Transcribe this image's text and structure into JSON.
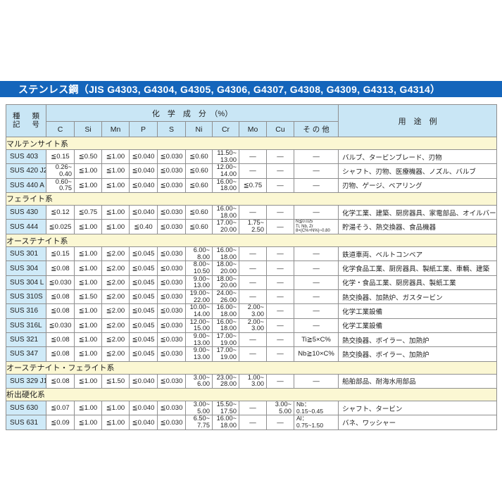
{
  "page_title": "ステンレス鋼（JIS G4303, G4304, G4305, G4306, G4307, G4308, G4309, G4313, G4314）",
  "colors": {
    "title_bar_bg": "#1465bb",
    "title_text": "#ffffff",
    "header_cell_bg": "#c9e6f5",
    "code_cell_bg": "#cfeaf8",
    "section_row_bg": "#fbf7d3",
    "grid_border": "#8f8f8f"
  },
  "table": {
    "header": {
      "col1_line1": "種類",
      "col1_line2": "記号",
      "group": "化　学　成　分　（%）",
      "elements": [
        "C",
        "Si",
        "Mn",
        "P",
        "S",
        "Ni",
        "Cr",
        "Mo",
        "Cu",
        "そ の 他"
      ],
      "usage": "用　途　例"
    },
    "sections": [
      {
        "name": "マルテンサイト系",
        "rows": [
          {
            "code": "SUS 403",
            "c": "≦0.15",
            "si": "≦0.50",
            "mn": "≦1.00",
            "p": "≦0.040",
            "s": "≦0.030",
            "ni": "≦0.60",
            "cr": "11.50~\n13.00",
            "mo": "—",
            "cu": "—",
            "other": "—",
            "use": "バルブ、タービンブレード、刃物"
          },
          {
            "code": "SUS 420 J2",
            "c": "0.26~\n0.40",
            "si": "≦1.00",
            "mn": "≦1.00",
            "p": "≦0.040",
            "s": "≦0.030",
            "ni": "≦0.60",
            "cr": "12.00~\n14.00",
            "mo": "—",
            "cu": "—",
            "other": "—",
            "use": "シャフト、刃物、医療機器、ノズル、バルブ"
          },
          {
            "code": "SUS 440 A",
            "c": "0.60~\n0.75",
            "si": "≦1.00",
            "mn": "≦1.00",
            "p": "≦0.040",
            "s": "≦0.030",
            "ni": "≦0.60",
            "cr": "16.00~\n18.00",
            "mo": "≦0.75",
            "cu": "—",
            "other": "—",
            "use": "刃物、ゲージ、ベアリング"
          }
        ]
      },
      {
        "name": "フェライト系",
        "rows": [
          {
            "code": "SUS 430",
            "c": "≦0.12",
            "si": "≦0.75",
            "mn": "≦1.00",
            "p": "≦0.040",
            "s": "≦0.030",
            "ni": "≦0.60",
            "cr": "16.00~\n18.00",
            "mo": "—",
            "cu": "—",
            "other": "—",
            "use": "化学工業、建築、厨房器具、家電部品、オイルバーナー部品"
          },
          {
            "code": "SUS 444",
            "c": "≦0.025",
            "si": "≦1.00",
            "mn": "≦1.00",
            "p": "≦0.40",
            "s": "≦0.030",
            "ni": "≦0.60",
            "cr": "17.00~\n20.00",
            "mo": "1.75~\n2.50",
            "cu": "—",
            "other": "N≦0.025\nTi, Nb, Zr\n8×(C%+N%)~0.80",
            "use": "貯湯そう、熱交換器、食品機器"
          }
        ]
      },
      {
        "name": "オーステナイト系",
        "rows": [
          {
            "code": "SUS 301",
            "c": "≦0.15",
            "si": "≦1.00",
            "mn": "≦2.00",
            "p": "≦0.045",
            "s": "≦0.030",
            "ni": "6.00~\n8.00",
            "cr": "16.00~\n18.00",
            "mo": "—",
            "cu": "—",
            "other": "—",
            "use": "鉄道車両、ベルトコンベア"
          },
          {
            "code": "SUS 304",
            "c": "≦0.08",
            "si": "≦1.00",
            "mn": "≦2.00",
            "p": "≦0.045",
            "s": "≦0.030",
            "ni": "8.00~\n10.50",
            "cr": "18.00~\n20.00",
            "mo": "—",
            "cu": "—",
            "other": "—",
            "use": "化学食品工業、厨房器具、製紙工業、車輌、建築"
          },
          {
            "code": "SUS 304 L",
            "c": "≦0.030",
            "si": "≦1.00",
            "mn": "≦2.00",
            "p": "≦0.045",
            "s": "≦0.030",
            "ni": "9.00~\n13.00",
            "cr": "18.00~\n20.00",
            "mo": "—",
            "cu": "—",
            "other": "—",
            "use": "化学・食品工業、厨房器具、製紙工業"
          },
          {
            "code": "SUS 310S",
            "c": "≦0.08",
            "si": "≦1.50",
            "mn": "≦2.00",
            "p": "≦0.045",
            "s": "≦0.030",
            "ni": "19.00~\n22.00",
            "cr": "24.00~\n26.00",
            "mo": "—",
            "cu": "—",
            "other": "—",
            "use": "熱交換器、加熱炉、ガスタービン"
          },
          {
            "code": "SUS 316",
            "c": "≦0.08",
            "si": "≦1.00",
            "mn": "≦2.00",
            "p": "≦0.045",
            "s": "≦0.030",
            "ni": "10.00~\n14.00",
            "cr": "16.00~\n18.00",
            "mo": "2.00~\n3.00",
            "cu": "—",
            "other": "—",
            "use": "化学工業設備"
          },
          {
            "code": "SUS 316L",
            "c": "≦0.030",
            "si": "≦1.00",
            "mn": "≦2.00",
            "p": "≦0.045",
            "s": "≦0.030",
            "ni": "12.00~\n15.00",
            "cr": "16.00~\n18.00",
            "mo": "2.00~\n3.00",
            "cu": "—",
            "other": "—",
            "use": "化学工業設備"
          },
          {
            "code": "SUS 321",
            "c": "≦0.08",
            "si": "≦1.00",
            "mn": "≦2.00",
            "p": "≦0.045",
            "s": "≦0.030",
            "ni": "9.00~\n13.00",
            "cr": "17.00~\n19.00",
            "mo": "—",
            "cu": "—",
            "other": "Ti≧5×C%",
            "use": "熱交換器、ボイラー、加熱炉"
          },
          {
            "code": "SUS 347",
            "c": "≦0.08",
            "si": "≦1.00",
            "mn": "≦2.00",
            "p": "≦0.045",
            "s": "≦0.030",
            "ni": "9.00~\n13.00",
            "cr": "17.00~\n19.00",
            "mo": "—",
            "cu": "—",
            "other": "Nb≧10×C%",
            "use": "熱交換器、ボイラー、加熱炉"
          }
        ]
      },
      {
        "name": "オーステナイト・フェライト系",
        "rows": [
          {
            "code": "SUS 329 J1",
            "c": "≦0.08",
            "si": "≦1.00",
            "mn": "≦1.50",
            "p": "≦0.040",
            "s": "≦0.030",
            "ni": "3.00~\n6.00",
            "cr": "23.00~\n28.00",
            "mo": "1.00~\n3.00",
            "cu": "—",
            "other": "—",
            "use": "船舶部品、耐海水用部品"
          }
        ]
      },
      {
        "name": "析出硬化系",
        "rows": [
          {
            "code": "SUS 630",
            "c": "≦0.07",
            "si": "≦1.00",
            "mn": "≦1.00",
            "p": "≦0.040",
            "s": "≦0.030",
            "ni": "3.00~\n5.00",
            "cr": "15.50~\n17.50",
            "mo": "—",
            "cu": "3.00~\n5.00",
            "other": "Nb：\n0.15~0.45",
            "use": "シャフト、タービン"
          },
          {
            "code": "SUS 631",
            "c": "≦0.09",
            "si": "≦1.00",
            "mn": "≦1.00",
            "p": "≦0.040",
            "s": "≦0.030",
            "ni": "6.50~\n7.75",
            "cr": "16.00~\n18.00",
            "mo": "—",
            "cu": "—",
            "other": "Al：\n0.75~1.50",
            "use": "バネ、ワッシャー"
          }
        ]
      }
    ]
  }
}
